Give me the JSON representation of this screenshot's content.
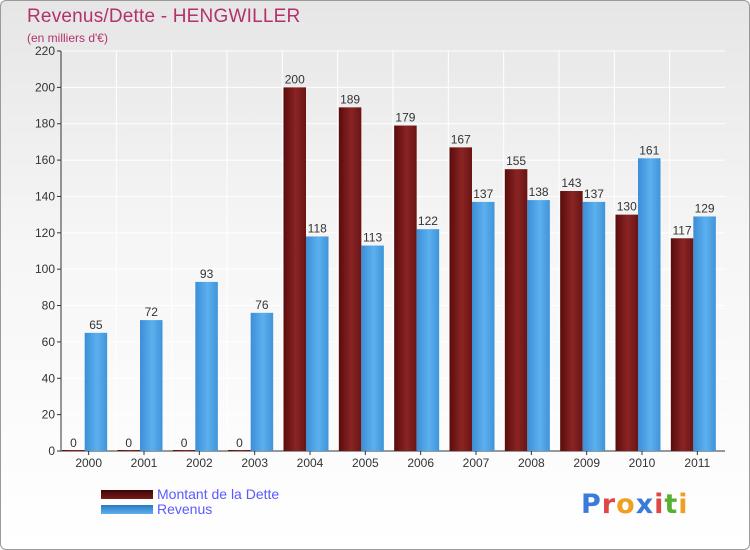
{
  "chart_data": {
    "type": "bar",
    "title": "Revenus/Dette - HENGWILLER",
    "subtitle": "(en milliers d'€)",
    "categories": [
      "2000",
      "2001",
      "2002",
      "2003",
      "2004",
      "2005",
      "2006",
      "2007",
      "2008",
      "2009",
      "2010",
      "2011"
    ],
    "series": [
      {
        "name": "Montant de la Dette",
        "values": [
          0,
          0,
          0,
          0,
          200,
          189,
          179,
          167,
          155,
          143,
          130,
          117
        ],
        "color": "#7a1a1a"
      },
      {
        "name": "Revenus",
        "values": [
          65,
          72,
          93,
          76,
          118,
          113,
          122,
          137,
          138,
          137,
          161,
          129
        ],
        "color": "#4aa0e0"
      }
    ],
    "ylim": [
      0,
      220
    ],
    "yticks": [
      0,
      20,
      40,
      60,
      80,
      100,
      120,
      140,
      160,
      180,
      200,
      220
    ],
    "xlabel": "",
    "ylabel": "",
    "grid": true,
    "legend": "bottom-left"
  },
  "brand": {
    "logo_text": "Proxiti",
    "letter_colors": [
      "#3a7ad8",
      "#e04848",
      "#f0a020",
      "#3a7ad8",
      "#e04848",
      "#58b030",
      "#f0a020"
    ]
  }
}
